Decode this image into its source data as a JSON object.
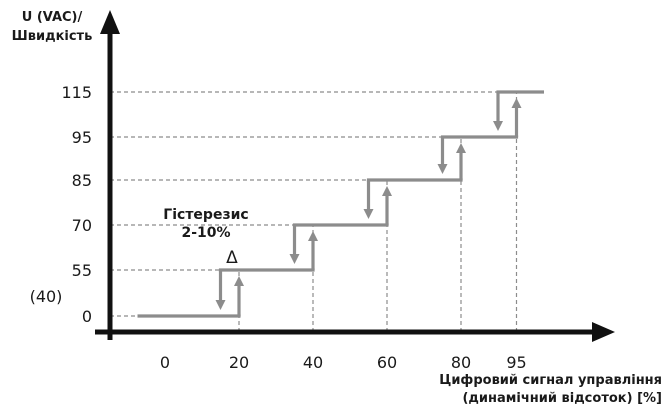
{
  "chart_data": {
    "type": "line",
    "title": "",
    "ylabel_lines": [
      "U (VAC)/",
      "Швидкість"
    ],
    "xlabel_lines": [
      "Цифровий сигнал управління",
      "(динамічний відсоток) [%]"
    ],
    "x_ticks": [
      {
        "value": 0,
        "label": "0"
      },
      {
        "value": 20,
        "label": "20"
      },
      {
        "value": 40,
        "label": "40"
      },
      {
        "value": 60,
        "label": "60"
      },
      {
        "value": 80,
        "label": "80"
      },
      {
        "value": 95,
        "label": "95"
      }
    ],
    "y_ticks": [
      {
        "level": 0,
        "label": "0"
      },
      {
        "level": 1,
        "label": "55"
      },
      {
        "level": 2,
        "label": "70"
      },
      {
        "level": 3,
        "label": "85"
      },
      {
        "level": 4,
        "label": "95"
      },
      {
        "level": 5,
        "label": "115"
      }
    ],
    "y_extra_label": "(40)",
    "steps": [
      {
        "x_start": -7,
        "x_up": 20,
        "x_down": 15,
        "level": 0
      },
      {
        "x_up": 40,
        "x_down": 35,
        "level": 1
      },
      {
        "x_up": 60,
        "x_down": 55,
        "level": 2
      },
      {
        "x_up": 80,
        "x_down": 75,
        "level": 3
      },
      {
        "x_up": 95,
        "x_down": 90,
        "level": 4
      },
      {
        "x_end": 102,
        "level": 5
      }
    ],
    "annotation_lines": [
      "Гістерезис",
      "2-10%"
    ],
    "delta_symbol": "Δ",
    "grid": "dashed guide lines",
    "colors": {
      "step_line": "#8c8c8c",
      "guide": "#8c8c8c",
      "axis": "#111111"
    }
  }
}
